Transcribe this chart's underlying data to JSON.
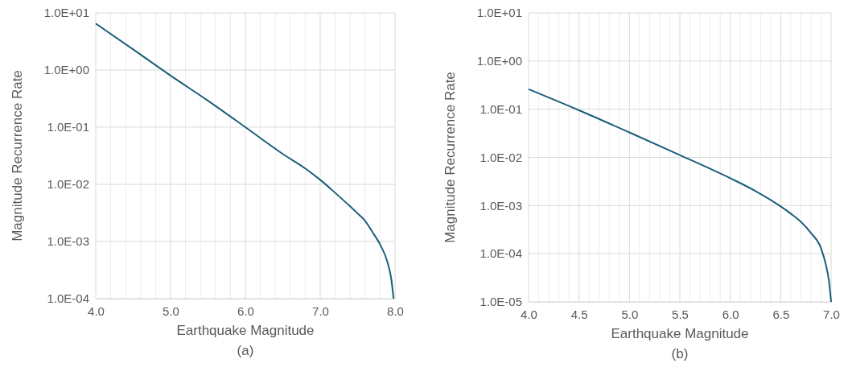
{
  "chart_data": [
    {
      "type": "line",
      "xlabel": "Earthquake Magnitude",
      "ylabel": "Magnitude Recurrence Rate",
      "annotations": [
        "(a)"
      ],
      "log": "y",
      "grid": true,
      "marker": "none",
      "line_style": "solid",
      "x": [
        4.0,
        4.5,
        5.0,
        5.5,
        6.0,
        6.5,
        6.8,
        7.0,
        7.2,
        7.5,
        7.6,
        7.7,
        7.8,
        7.9,
        7.95,
        7.98
      ],
      "series": [
        {
          "color": "#1b5e7b",
          "values": [
            6.5,
            2.3,
            0.8,
            0.29,
            0.1,
            0.034,
            0.019,
            0.012,
            0.0071,
            0.0031,
            0.0023,
            0.00145,
            0.00089,
            0.00043,
            0.00022,
            0.0001
          ]
        }
      ],
      "xlim": [
        4.0,
        8.0
      ],
      "xticks": [
        {
          "value": 4.0,
          "label": "4.0"
        },
        {
          "value": 4.2,
          "label": null
        },
        {
          "value": 4.4,
          "label": null
        },
        {
          "value": 4.6,
          "label": null
        },
        {
          "value": 4.8,
          "label": null
        },
        {
          "value": 5.0,
          "label": "5.0"
        },
        {
          "value": 5.2,
          "label": null
        },
        {
          "value": 5.4,
          "label": null
        },
        {
          "value": 5.6,
          "label": null
        },
        {
          "value": 5.8,
          "label": null
        },
        {
          "value": 6.0,
          "label": "6.0"
        },
        {
          "value": 6.2,
          "label": null
        },
        {
          "value": 6.4,
          "label": null
        },
        {
          "value": 6.6,
          "label": null
        },
        {
          "value": 6.8,
          "label": null
        },
        {
          "value": 7.0,
          "label": "7.0"
        },
        {
          "value": 7.2,
          "label": null
        },
        {
          "value": 7.4,
          "label": null
        },
        {
          "value": 7.6,
          "label": null
        },
        {
          "value": 7.8,
          "label": null
        },
        {
          "value": 8.0,
          "label": "8.0"
        }
      ],
      "ylim": [
        0.0001,
        10
      ],
      "yticks": [
        {
          "value": 0.0001,
          "label": "1.0E-04"
        },
        {
          "value": 0.001,
          "label": "1.0E-03"
        },
        {
          "value": 0.01,
          "label": "1.0E-02"
        },
        {
          "value": 0.1,
          "label": "1.0E-01"
        },
        {
          "value": 1,
          "label": "1.0E+00"
        },
        {
          "value": 10,
          "label": "1.0E+01"
        }
      ]
    },
    {
      "type": "line",
      "xlabel": "Earthquake Magnitude",
      "ylabel": "Magnitude Recurrence Rate",
      "annotations": [
        "(b)"
      ],
      "log": "y",
      "grid": true,
      "marker": "none",
      "line_style": "solid",
      "x": [
        4.0,
        4.5,
        5.0,
        5.5,
        6.0,
        6.25,
        6.5,
        6.6,
        6.7,
        6.8,
        6.9,
        6.95,
        6.98,
        7.0
      ],
      "series": [
        {
          "color": "#1b5e7b",
          "values": [
            0.26,
            0.095,
            0.033,
            0.0112,
            0.0037,
            0.002,
            0.00096,
            0.00068,
            0.00046,
            0.00027,
            0.00013,
            5.7e-05,
            2.6e-05,
            1e-05
          ]
        }
      ],
      "xlim": [
        4.0,
        7.0
      ],
      "xticks": [
        {
          "value": 4.0,
          "label": "4.0"
        },
        {
          "value": 4.1,
          "label": null
        },
        {
          "value": 4.2,
          "label": null
        },
        {
          "value": 4.3,
          "label": null
        },
        {
          "value": 4.4,
          "label": null
        },
        {
          "value": 4.5,
          "label": "4.5"
        },
        {
          "value": 4.6,
          "label": null
        },
        {
          "value": 4.7,
          "label": null
        },
        {
          "value": 4.8,
          "label": null
        },
        {
          "value": 4.9,
          "label": null
        },
        {
          "value": 5.0,
          "label": "5.0"
        },
        {
          "value": 5.1,
          "label": null
        },
        {
          "value": 5.2,
          "label": null
        },
        {
          "value": 5.3,
          "label": null
        },
        {
          "value": 5.4,
          "label": null
        },
        {
          "value": 5.5,
          "label": "5.5"
        },
        {
          "value": 5.6,
          "label": null
        },
        {
          "value": 5.7,
          "label": null
        },
        {
          "value": 5.8,
          "label": null
        },
        {
          "value": 5.9,
          "label": null
        },
        {
          "value": 6.0,
          "label": "6.0"
        },
        {
          "value": 6.1,
          "label": null
        },
        {
          "value": 6.2,
          "label": null
        },
        {
          "value": 6.3,
          "label": null
        },
        {
          "value": 6.4,
          "label": null
        },
        {
          "value": 6.5,
          "label": "6.5"
        },
        {
          "value": 6.6,
          "label": null
        },
        {
          "value": 6.7,
          "label": null
        },
        {
          "value": 6.8,
          "label": null
        },
        {
          "value": 6.9,
          "label": null
        },
        {
          "value": 7.0,
          "label": "7.0"
        }
      ],
      "ylim": [
        1e-05,
        10
      ],
      "yticks": [
        {
          "value": 1e-05,
          "label": "1.0E-05"
        },
        {
          "value": 0.0001,
          "label": "1.0E-04"
        },
        {
          "value": 0.001,
          "label": "1.0E-03"
        },
        {
          "value": 0.01,
          "label": "1.0E-02"
        },
        {
          "value": 0.1,
          "label": "1.0E-01"
        },
        {
          "value": 1,
          "label": "1.0E+00"
        },
        {
          "value": 10,
          "label": "1.0E+01"
        }
      ]
    }
  ]
}
